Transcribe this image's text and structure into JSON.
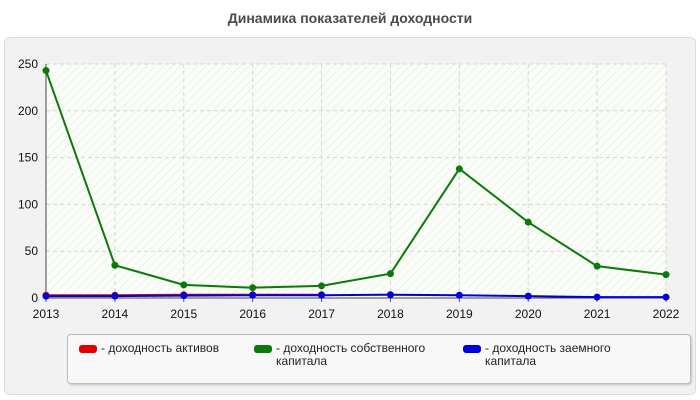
{
  "chart_data": {
    "type": "line",
    "title": "Динамика показателей доходности",
    "xlabel": "",
    "ylabel": "",
    "categories": [
      "2013",
      "2014",
      "2015",
      "2016",
      "2017",
      "2018",
      "2019",
      "2020",
      "2021",
      "2022"
    ],
    "ylim": [
      0,
      250
    ],
    "yticks": [
      0,
      50,
      100,
      150,
      200,
      250
    ],
    "grid": true,
    "legend_position": "bottom",
    "series": [
      {
        "name": "- доходность активов",
        "color": "#e00000",
        "values": [
          3,
          3,
          3.5,
          3.5,
          3.5,
          null,
          null,
          null,
          null,
          null
        ]
      },
      {
        "name": "- доходность собственного капитала",
        "color": "#0a7a0a",
        "values": [
          243,
          35,
          14,
          11,
          13,
          26,
          138,
          81,
          34,
          25
        ]
      },
      {
        "name": "- доходность заемного капитала",
        "color": "#0000dd",
        "values": [
          2,
          2,
          2.5,
          3,
          3,
          3.5,
          3,
          2,
          1,
          1
        ]
      }
    ]
  }
}
